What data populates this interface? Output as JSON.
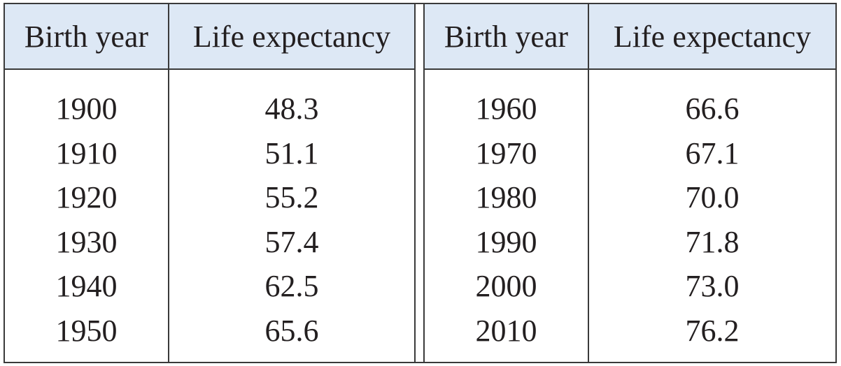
{
  "table": {
    "headers": {
      "left_year": "Birth year",
      "left_life": "Life expectancy",
      "right_year": "Birth year",
      "right_life": "Life expectancy"
    },
    "left": {
      "years": [
        "1900",
        "1910",
        "1920",
        "1930",
        "1940",
        "1950"
      ],
      "life": [
        "48.3",
        "51.1",
        "55.2",
        "57.4",
        "62.5",
        "65.6"
      ]
    },
    "right": {
      "years": [
        "1960",
        "1970",
        "1980",
        "1990",
        "2000",
        "2010"
      ],
      "life": [
        "66.6",
        "67.1",
        "70.0",
        "71.8",
        "73.0",
        "76.2"
      ]
    }
  }
}
